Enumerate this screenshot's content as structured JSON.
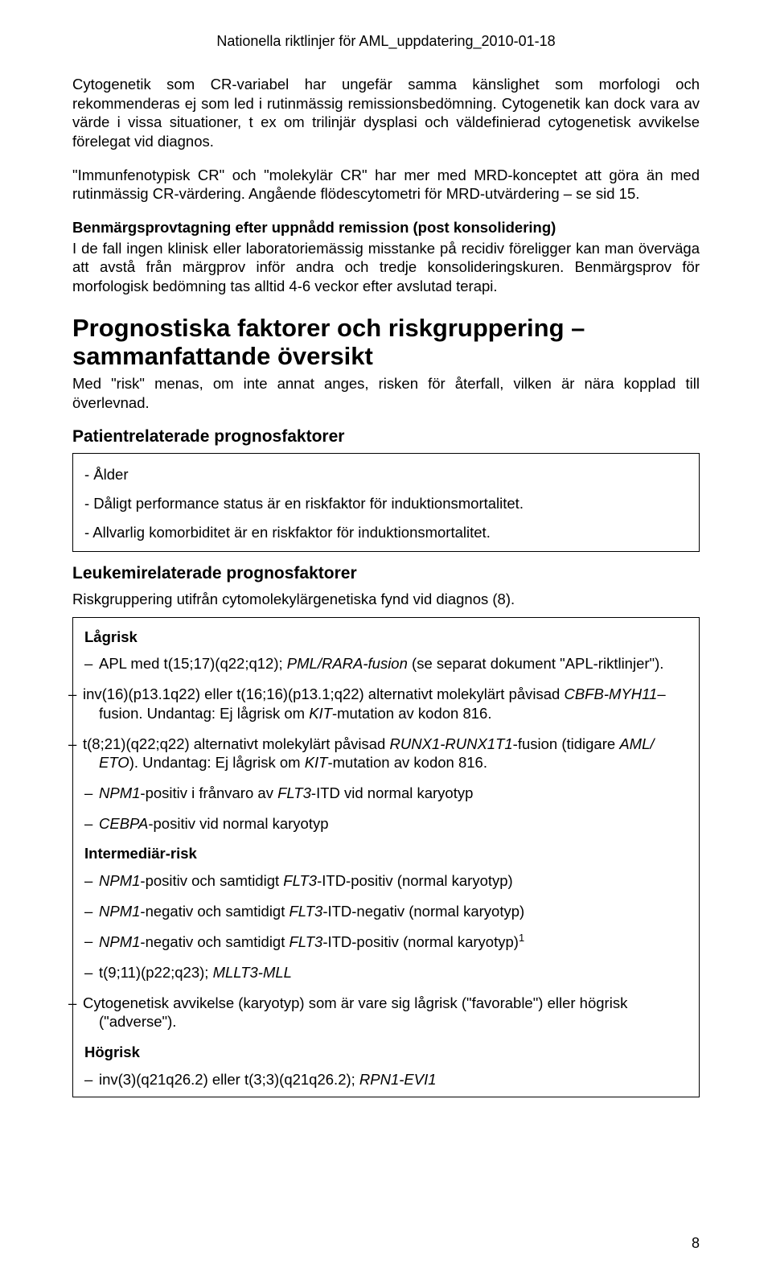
{
  "header": "Nationella riktlinjer för AML_uppdatering_2010-01-18",
  "p1": "Cytogenetik som CR-variabel har ungefär samma känslighet som morfologi och rekommenderas ej som led i rutinmässig remissionsbedömning. Cytogenetik kan dock vara av värde i vissa situationer, t ex om trilinjär dysplasi och väldefinierad cytogenetisk avvikelse förelegat vid diagnos.",
  "p2": "\"Immunfenotypisk CR\" och \"molekylär CR\" har mer med MRD-konceptet att göra än med rutinmässig CR-värdering. Angående flödescytometri för MRD-utvärdering – se sid 15.",
  "sub1_title": "Benmärgsprovtagning efter uppnådd remission (post konsolidering)",
  "sub1_body": "I de fall ingen klinisk eller laboratoriemässig misstanke på recidiv föreligger kan man överväga att avstå från märgprov inför andra och tredje konsolideringskuren. Benmärgsprov för morfologisk bedömning tas alltid 4-6 veckor efter avslutad terapi.",
  "h1": "Prognostiska faktorer och riskgruppering – sammanfattande översikt",
  "h1_follow": "Med \"risk\" menas, om inte annat anges, risken för återfall, vilken är nära kopplad till överlevnad.",
  "group1_title": "Patientrelaterade prognosfaktorer",
  "group1_items": [
    "- Ålder",
    "- Dåligt performance status är en riskfaktor för induktionsmortalitet.",
    "- Allvarlig komorbiditet är en riskfaktor för induktionsmortalitet."
  ],
  "group2_title": "Leukemirelaterade prognosfaktorer",
  "group2_sub": "Riskgruppering utifrån cytomolekylärgenetiska fynd vid diagnos (8).",
  "risk_low_label": "Lågrisk",
  "risk_low_items_html": [
    "APL med t(15;17)(q22;q12); <span class=\"italic\">PML/RARA-fusion</span> (se separat dokument \"APL-riktlinjer\").",
    "inv(16)(p13.1q22) eller t(16;16)(p13.1;q22) alternativt molekylärt påvisad <span class=\"italic\">CBFB-MYH11</span>– fusion. Undantag: Ej lågrisk om <span class=\"italic\">KIT</span>-mutation av kodon 816.",
    "t(8;21)(q22;q22) alternativt molekylärt påvisad <span class=\"italic\">RUNX1-RUNX1T1</span>-fusion (tidigare <span class=\"italic\">AML/ ETO</span>). Undantag: Ej lågrisk om <span class=\"italic\">KIT</span>-mutation av kodon 816.",
    "<span class=\"italic\">NPM1</span>-positiv i frånvaro av <span class=\"italic\">FLT3</span>-ITD vid normal karyotyp",
    "<span class=\"italic\">CEBPA</span>-positiv vid normal karyotyp"
  ],
  "risk_mid_label": "Intermediär-risk",
  "risk_mid_items_html": [
    "<span class=\"italic\">NPM1</span>-positiv och samtidigt <span class=\"italic\">FLT3</span>-ITD-positiv (normal karyotyp)",
    "<span class=\"italic\">NPM1</span>-negativ och samtidigt <span class=\"italic\">FLT3</span>-ITD-negativ (normal karyotyp)",
    "<span class=\"italic\">NPM1</span>-negativ och samtidigt <span class=\"italic\">FLT3</span>-ITD-positiv (normal karyotyp)<sup>1</sup>",
    "t(9;11)(p22;q23); <span class=\"italic\">MLLT3-MLL</span>",
    "Cytogenetisk avvikelse (karyotyp) som är vare sig lågrisk (\"favorable\") eller högrisk (\"adverse\")."
  ],
  "risk_high_label": "Högrisk",
  "risk_high_items_html": [
    "inv(3)(q21q26.2) eller t(3;3)(q21q26.2); <span class=\"italic\">RPN1-EVI1</span>"
  ],
  "page_number": "8"
}
